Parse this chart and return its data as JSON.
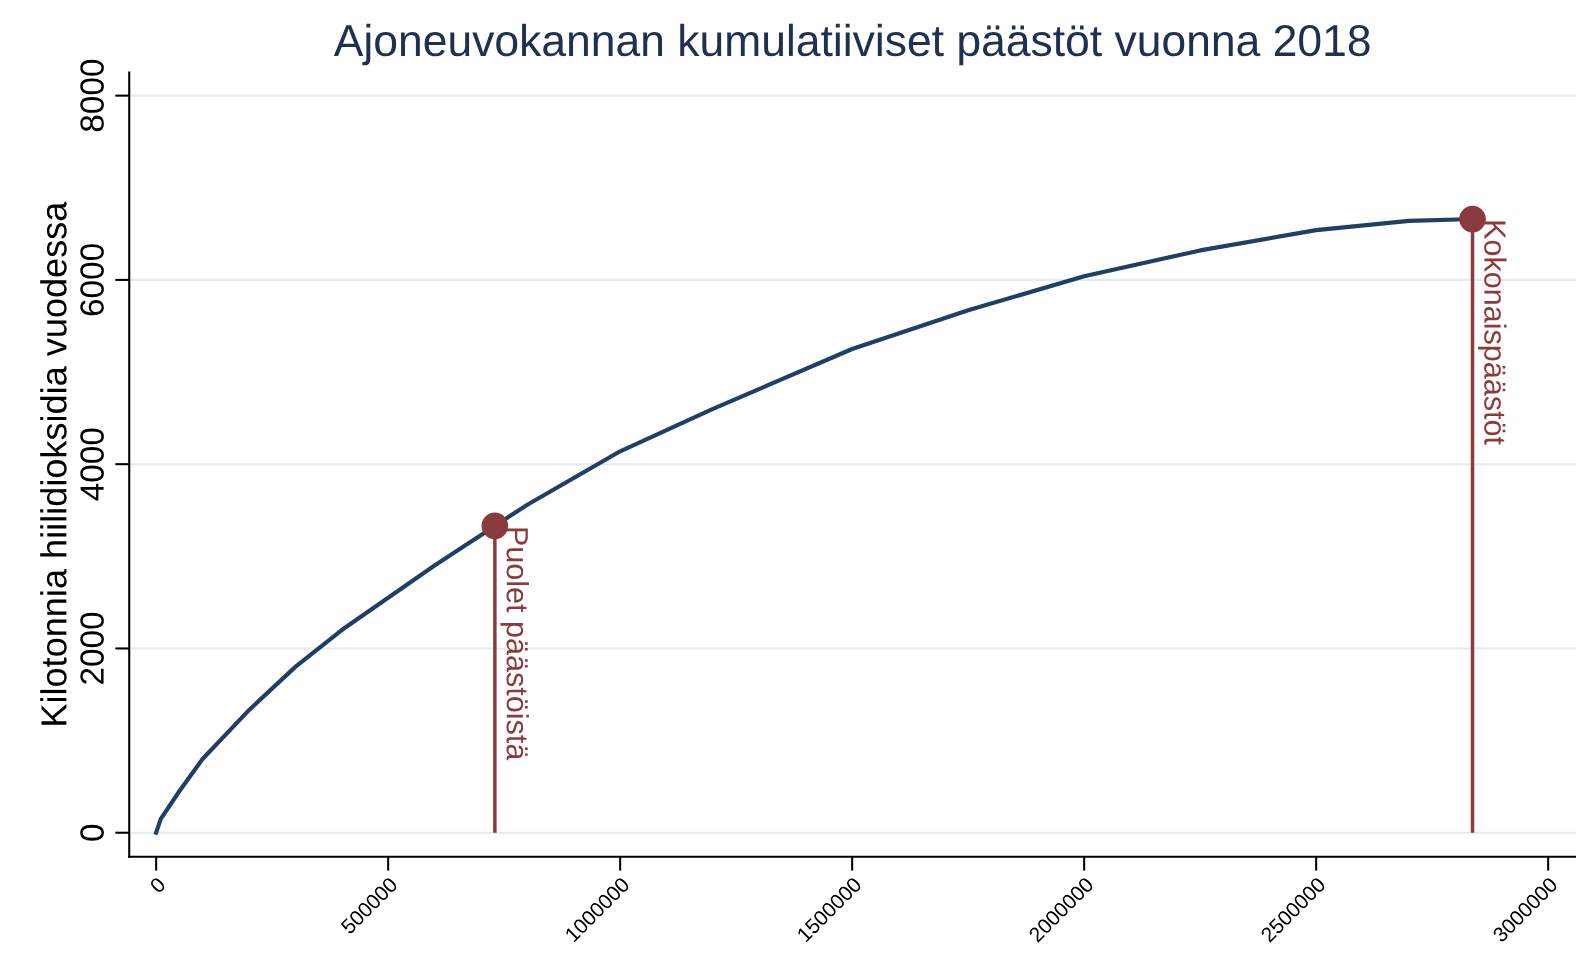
{
  "chart_data": {
    "type": "line",
    "title": "Ajoneuvokannan kumulatiiviset päästöt vuonna 2018",
    "ylabel": "Kilotonnia hiilidioksidia vuodessa",
    "series": [
      {
        "color": "#1f3f66",
        "x": [
          0,
          10000,
          50000,
          100000,
          200000,
          300000,
          400000,
          500000,
          600000,
          730000,
          800000,
          1000000,
          1200000,
          1500000,
          1750000,
          2000000,
          2250000,
          2500000,
          2700000,
          2837000
        ],
        "values": [
          0,
          150,
          450,
          800,
          1330,
          1800,
          2200,
          2550,
          2900,
          3330,
          3560,
          4140,
          4600,
          5250,
          5670,
          6040,
          6320,
          6540,
          6640,
          6660
        ]
      },
      {
        "type": "lollipop",
        "marker": "circle",
        "color": "#8b3a3e",
        "x": [
          730000,
          2837000
        ],
        "values": [
          3330,
          6660
        ]
      }
    ],
    "annotations": [
      {
        "text": "Puolet päästöistä",
        "x": 730000,
        "y": 3330
      },
      {
        "text": "Kokonaispäästöt",
        "x": 2837000,
        "y": 6660
      }
    ],
    "xlim": [
      -58000,
      3060000
    ],
    "ylim": [
      -260,
      8250
    ],
    "xticks": [
      0,
      500000,
      1000000,
      1500000,
      2000000,
      2500000,
      3000000
    ],
    "yticks": [
      0,
      2000,
      4000,
      6000,
      8000
    ],
    "grid": "y"
  }
}
